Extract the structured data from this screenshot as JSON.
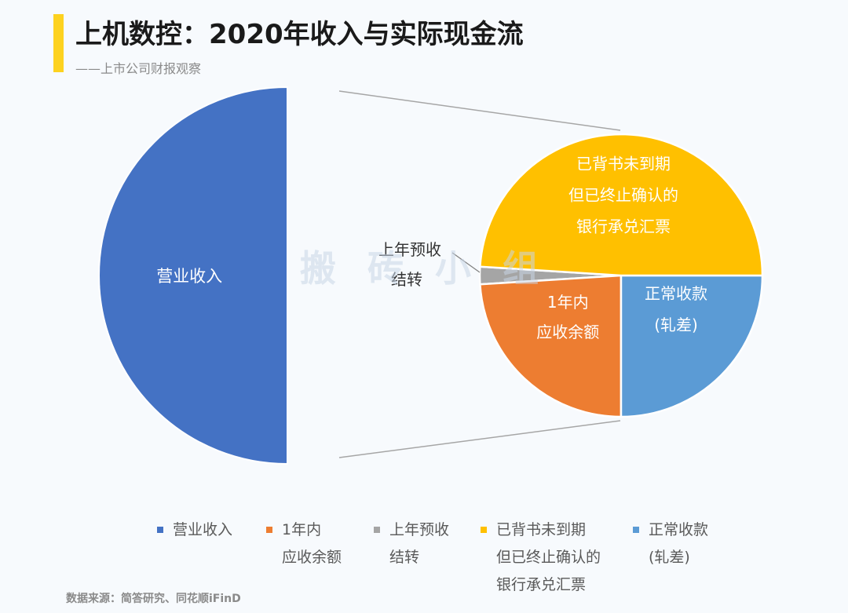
{
  "title": "上机数控：2020年收入与实际现金流",
  "subtitle": "——上市公司财报观察",
  "source": "数据来源：简答研究、同花顺iFinD",
  "watermark": "搬砖小组",
  "colors": {
    "revenue": "#4472c4",
    "receivable": "#ed7d31",
    "prepaid": "#a5a5a5",
    "notes": "#ffc000",
    "collected": "#5b9bd5",
    "accent": "#fdd21f"
  },
  "chart_data": {
    "type": "pie",
    "subtype": "pie-of-pie",
    "title": "上机数控：2020年收入与实际现金流",
    "primary": {
      "slices": [
        {
          "id": "revenue",
          "label": [
            "营业收入"
          ],
          "value": 50
        }
      ],
      "exploded_share": 50
    },
    "secondary": {
      "slices": [
        {
          "id": "prepaid",
          "label": [
            "上年预收",
            "结转"
          ],
          "value": 1
        },
        {
          "id": "receivable",
          "label": [
            "1年内",
            "应收余额"
          ],
          "value": 12
        },
        {
          "id": "collected",
          "label": [
            "正常收款",
            "(轧差)"
          ],
          "value": 12.5
        },
        {
          "id": "notes",
          "label": [
            "已背书未到期",
            "但已终止确认的",
            "银行承兑汇票"
          ],
          "value": 24.5
        }
      ]
    },
    "legend": {
      "placement": "bottom",
      "items": [
        {
          "id": "revenue",
          "lines": [
            "营业收入"
          ]
        },
        {
          "id": "receivable",
          "lines": [
            "1年内",
            "应收余额"
          ]
        },
        {
          "id": "prepaid",
          "lines": [
            "上年预收",
            "结转"
          ]
        },
        {
          "id": "notes",
          "lines": [
            "已背书未到期",
            "但已终止确认的",
            "银行承兑汇票"
          ]
        },
        {
          "id": "collected",
          "lines": [
            "正常收款",
            "(轧差)"
          ]
        }
      ]
    }
  }
}
